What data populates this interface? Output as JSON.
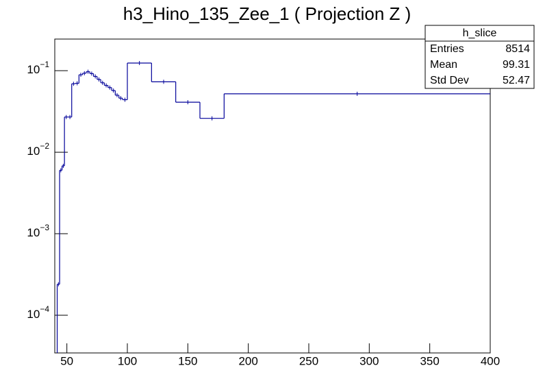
{
  "chart_data": {
    "type": "histogram",
    "title": "h3_Hino_135_Zee_1 ( Projection Z )",
    "bins": [
      42,
      44,
      46,
      48,
      51,
      54,
      57,
      60,
      63,
      66,
      69,
      72,
      75,
      78,
      81,
      84,
      87,
      90,
      93,
      96,
      100,
      120,
      140,
      160,
      180,
      400
    ],
    "values": [
      0.00024,
      0.006,
      0.0068,
      0.027,
      0.027,
      0.069,
      0.07,
      0.089,
      0.093,
      0.097,
      0.092,
      0.085,
      0.078,
      0.071,
      0.066,
      0.062,
      0.057,
      0.05,
      0.046,
      0.044,
      0.124,
      0.073,
      0.041,
      0.026,
      0.052
    ],
    "color": "#000099",
    "xlim": [
      40,
      400
    ],
    "xticks": [
      50,
      100,
      150,
      200,
      250,
      300,
      350,
      400
    ],
    "ylim": [
      3.45e-05,
      0.244
    ],
    "log_y": true,
    "yticks": [
      {
        "value": 0.0001,
        "label": "10",
        "exponent": "−4"
      },
      {
        "value": 0.001,
        "label": "10",
        "exponent": "−3"
      },
      {
        "value": 0.01,
        "label": "10",
        "exponent": "−2"
      },
      {
        "value": 0.1,
        "label": "10",
        "exponent": "−1"
      }
    ],
    "stats": {
      "name": "h_slice",
      "rows": [
        {
          "label": "Entries",
          "value": 8514
        },
        {
          "label": "Mean",
          "value": 99.31
        },
        {
          "label": "Std Dev",
          "value": 52.47
        }
      ]
    }
  }
}
